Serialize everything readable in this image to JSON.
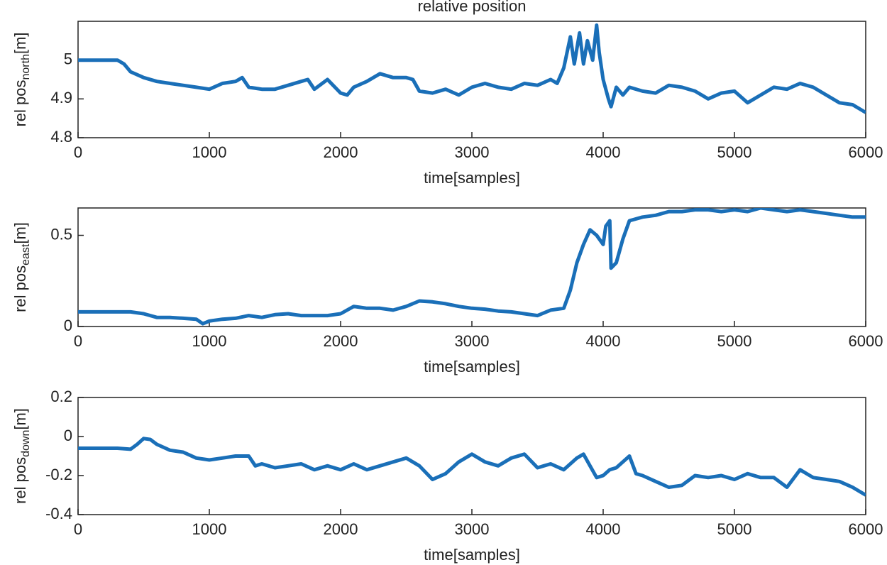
{
  "chart_data": [
    {
      "type": "line",
      "title": "relative position",
      "xlabel": "time[samples]",
      "ylabel": "rel pos",
      "ylabel_sub": "north",
      "ylabel_unit": "[m]",
      "color": "#1a6fb8",
      "xlim": [
        0,
        6000
      ],
      "xticks": [
        0,
        1000,
        2000,
        3000,
        4000,
        5000,
        6000
      ],
      "ylim": [
        4.8,
        5.1
      ],
      "yticks": [
        4.8,
        4.9,
        5
      ],
      "x": [
        0,
        300,
        350,
        400,
        500,
        600,
        700,
        800,
        900,
        1000,
        1100,
        1200,
        1250,
        1300,
        1400,
        1500,
        1600,
        1700,
        1750,
        1800,
        1900,
        2000,
        2050,
        2100,
        2200,
        2300,
        2400,
        2500,
        2550,
        2600,
        2700,
        2800,
        2900,
        3000,
        3100,
        3200,
        3300,
        3400,
        3500,
        3600,
        3650,
        3700,
        3750,
        3780,
        3820,
        3850,
        3880,
        3920,
        3950,
        3970,
        4000,
        4040,
        4060,
        4100,
        4150,
        4200,
        4300,
        4400,
        4500,
        4600,
        4700,
        4800,
        4900,
        5000,
        5100,
        5200,
        5300,
        5400,
        5500,
        5600,
        5700,
        5800,
        5900,
        6000
      ],
      "values": [
        5.0,
        5.0,
        4.99,
        4.97,
        4.955,
        4.945,
        4.94,
        4.935,
        4.93,
        4.925,
        4.94,
        4.945,
        4.955,
        4.93,
        4.925,
        4.925,
        4.935,
        4.945,
        4.95,
        4.925,
        4.95,
        4.915,
        4.91,
        4.93,
        4.945,
        4.965,
        4.955,
        4.955,
        4.95,
        4.92,
        4.915,
        4.925,
        4.91,
        4.93,
        4.94,
        4.93,
        4.925,
        4.94,
        4.935,
        4.95,
        4.94,
        4.98,
        5.06,
        4.99,
        5.07,
        4.99,
        5.05,
        5.0,
        5.09,
        5.02,
        4.95,
        4.9,
        4.88,
        4.93,
        4.91,
        4.93,
        4.92,
        4.915,
        4.935,
        4.93,
        4.92,
        4.9,
        4.915,
        4.92,
        4.89,
        4.91,
        4.93,
        4.925,
        4.94,
        4.93,
        4.91,
        4.89,
        4.885,
        4.865
      ]
    },
    {
      "type": "line",
      "xlabel": "time[samples]",
      "ylabel": "rel pos",
      "ylabel_sub": "east",
      "ylabel_unit": "[m]",
      "color": "#1a6fb8",
      "xlim": [
        0,
        6000
      ],
      "xticks": [
        0,
        1000,
        2000,
        3000,
        4000,
        5000,
        6000
      ],
      "ylim": [
        0,
        0.65
      ],
      "yticks": [
        0,
        0.5
      ],
      "x": [
        0,
        300,
        400,
        500,
        600,
        700,
        800,
        900,
        950,
        1000,
        1100,
        1200,
        1300,
        1400,
        1500,
        1600,
        1700,
        1800,
        1900,
        2000,
        2100,
        2200,
        2300,
        2400,
        2500,
        2600,
        2700,
        2800,
        2900,
        3000,
        3100,
        3200,
        3300,
        3400,
        3500,
        3600,
        3700,
        3750,
        3800,
        3850,
        3900,
        3950,
        4000,
        4020,
        4050,
        4060,
        4100,
        4150,
        4200,
        4300,
        4400,
        4500,
        4600,
        4700,
        4800,
        4900,
        5000,
        5100,
        5200,
        5300,
        5400,
        5500,
        5600,
        5700,
        5800,
        5900,
        6000
      ],
      "values": [
        0.08,
        0.08,
        0.08,
        0.07,
        0.05,
        0.05,
        0.045,
        0.04,
        0.015,
        0.03,
        0.04,
        0.045,
        0.06,
        0.05,
        0.065,
        0.07,
        0.06,
        0.06,
        0.06,
        0.07,
        0.11,
        0.1,
        0.1,
        0.09,
        0.11,
        0.14,
        0.135,
        0.125,
        0.11,
        0.1,
        0.095,
        0.085,
        0.08,
        0.07,
        0.06,
        0.09,
        0.1,
        0.2,
        0.35,
        0.45,
        0.53,
        0.5,
        0.45,
        0.55,
        0.58,
        0.32,
        0.35,
        0.48,
        0.58,
        0.6,
        0.61,
        0.63,
        0.63,
        0.64,
        0.64,
        0.63,
        0.64,
        0.63,
        0.65,
        0.64,
        0.63,
        0.64,
        0.63,
        0.62,
        0.61,
        0.6,
        0.6
      ]
    },
    {
      "type": "line",
      "xlabel": "time[samples]",
      "ylabel": "rel pos",
      "ylabel_sub": "down",
      "ylabel_unit": "[m]",
      "color": "#1a6fb8",
      "xlim": [
        0,
        6000
      ],
      "xticks": [
        0,
        1000,
        2000,
        3000,
        4000,
        5000,
        6000
      ],
      "ylim": [
        -0.4,
        0.2
      ],
      "yticks": [
        -0.4,
        -0.2,
        0,
        0.2
      ],
      "x": [
        0,
        300,
        400,
        450,
        500,
        550,
        600,
        700,
        800,
        900,
        1000,
        1100,
        1200,
        1300,
        1350,
        1400,
        1500,
        1600,
        1700,
        1800,
        1900,
        2000,
        2100,
        2200,
        2300,
        2400,
        2500,
        2600,
        2700,
        2800,
        2900,
        3000,
        3100,
        3200,
        3300,
        3400,
        3500,
        3600,
        3700,
        3800,
        3850,
        3900,
        3950,
        4000,
        4050,
        4100,
        4200,
        4250,
        4300,
        4400,
        4500,
        4600,
        4700,
        4800,
        4900,
        5000,
        5100,
        5200,
        5300,
        5400,
        5500,
        5600,
        5700,
        5800,
        5900,
        6000
      ],
      "values": [
        -0.06,
        -0.06,
        -0.065,
        -0.04,
        -0.01,
        -0.015,
        -0.04,
        -0.07,
        -0.08,
        -0.11,
        -0.12,
        -0.11,
        -0.1,
        -0.1,
        -0.15,
        -0.14,
        -0.16,
        -0.15,
        -0.14,
        -0.17,
        -0.15,
        -0.17,
        -0.14,
        -0.17,
        -0.15,
        -0.13,
        -0.11,
        -0.15,
        -0.22,
        -0.19,
        -0.13,
        -0.09,
        -0.13,
        -0.15,
        -0.11,
        -0.09,
        -0.16,
        -0.14,
        -0.17,
        -0.11,
        -0.09,
        -0.15,
        -0.21,
        -0.2,
        -0.17,
        -0.16,
        -0.1,
        -0.19,
        -0.2,
        -0.23,
        -0.26,
        -0.25,
        -0.2,
        -0.21,
        -0.2,
        -0.22,
        -0.19,
        -0.21,
        -0.21,
        -0.26,
        -0.17,
        -0.21,
        -0.22,
        -0.23,
        -0.26,
        -0.3
      ]
    }
  ]
}
